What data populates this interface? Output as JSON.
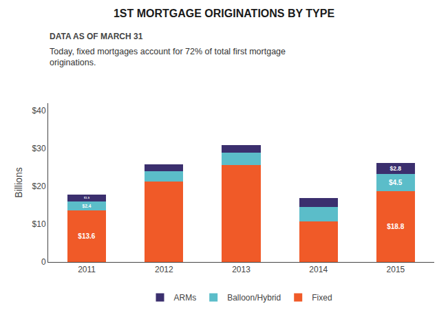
{
  "chart_data": {
    "type": "bar",
    "stacked": true,
    "title": "1ST MORTGAGE ORIGINATIONS BY TYPE",
    "subtitle": "DATA AS OF MARCH 31",
    "annotation": "Today, fixed mortgages account for 72% of total first mortgage\noriginations.",
    "categories": [
      "2011",
      "2012",
      "2013",
      "2014",
      "2015"
    ],
    "series": [
      {
        "name": "Fixed",
        "color": "#f05a28",
        "values": [
          13.6,
          21.2,
          25.7,
          10.7,
          18.8
        ],
        "value_labels": [
          "$13.6",
          null,
          null,
          null,
          "$18.8"
        ]
      },
      {
        "name": "Balloon/Hybrid",
        "color": "#5bbdc9",
        "values": [
          2.4,
          2.8,
          3.2,
          3.8,
          4.5
        ],
        "value_labels": [
          "$2.4",
          null,
          null,
          null,
          "$4.5"
        ]
      },
      {
        "name": "ARMs",
        "color": "#3b2f6e",
        "values": [
          1.9,
          1.8,
          2.1,
          2.5,
          2.8
        ],
        "value_labels": [
          "$1.9",
          null,
          null,
          null,
          "$2.8"
        ]
      }
    ],
    "ylabel": "Billions",
    "ylim": [
      0,
      42
    ],
    "yticks": [
      0,
      {
        "value": 10,
        "label": "$10"
      },
      {
        "value": 20,
        "label": "$20"
      },
      {
        "value": 30,
        "label": "$30"
      },
      {
        "value": 40,
        "label": "$40"
      }
    ],
    "grid": false,
    "data_labels": true,
    "legend": "bottom"
  }
}
